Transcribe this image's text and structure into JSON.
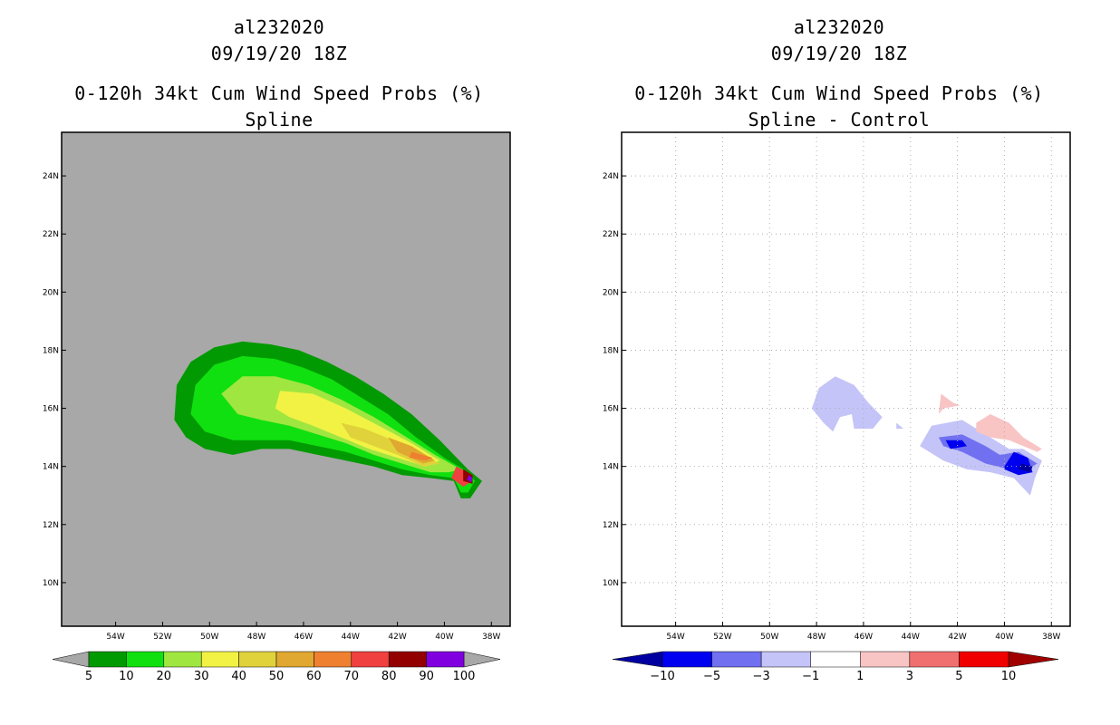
{
  "chart_data": [
    {
      "type": "contour",
      "title_lines": [
        "al232020",
        "09/19/20 18Z",
        "0-120h 34kt Cum Wind Speed Probs (%)",
        "Spline"
      ],
      "x_ticks": [
        "54W",
        "52W",
        "50W",
        "48W",
        "46W",
        "44W",
        "42W",
        "40W",
        "38W"
      ],
      "y_ticks": [
        "24N",
        "22N",
        "20N",
        "18N",
        "16N",
        "14N",
        "12N",
        "10N"
      ],
      "xlim": [
        -56.3,
        -37.2
      ],
      "ylim": [
        8.5,
        25.5
      ],
      "background": "#a8a8a8",
      "levels": [
        5,
        10,
        20,
        30,
        40,
        50,
        60,
        70,
        80,
        90,
        100
      ],
      "level_labels": [
        "5",
        "10",
        "20",
        "30",
        "40",
        "50",
        "60",
        "70",
        "80",
        "90",
        "100"
      ],
      "colors": [
        "#029a02",
        "#10e010",
        "#a0e640",
        "#f2f244",
        "#e0d23a",
        "#e0a830",
        "#ee8030",
        "#f04040",
        "#920000",
        "#8000e0"
      ],
      "contours": [
        {
          "level": 5,
          "points": [
            [
              -51.5,
              15.6
            ],
            [
              -51.4,
              16.8
            ],
            [
              -50.8,
              17.6
            ],
            [
              -49.8,
              18.1
            ],
            [
              -48.6,
              18.3
            ],
            [
              -47.4,
              18.2
            ],
            [
              -46.2,
              18.0
            ],
            [
              -45.0,
              17.6
            ],
            [
              -43.8,
              17.1
            ],
            [
              -42.6,
              16.5
            ],
            [
              -41.4,
              15.8
            ],
            [
              -40.2,
              14.9
            ],
            [
              -39.0,
              13.9
            ],
            [
              -38.4,
              13.5
            ],
            [
              -38.9,
              12.9
            ],
            [
              -39.3,
              12.9
            ],
            [
              -39.6,
              13.5
            ],
            [
              -40.6,
              13.6
            ],
            [
              -41.8,
              13.7
            ],
            [
              -43.0,
              14.0
            ],
            [
              -44.2,
              14.2
            ],
            [
              -45.4,
              14.4
            ],
            [
              -46.6,
              14.6
            ],
            [
              -47.8,
              14.6
            ],
            [
              -49.0,
              14.4
            ],
            [
              -50.2,
              14.6
            ],
            [
              -51.0,
              15.0
            ]
          ]
        },
        {
          "level": 10,
          "points": [
            [
              -50.8,
              15.8
            ],
            [
              -50.6,
              16.8
            ],
            [
              -49.8,
              17.5
            ],
            [
              -48.6,
              17.8
            ],
            [
              -47.2,
              17.7
            ],
            [
              -46.0,
              17.4
            ],
            [
              -44.8,
              17.0
            ],
            [
              -43.6,
              16.4
            ],
            [
              -42.4,
              15.8
            ],
            [
              -41.2,
              15.0
            ],
            [
              -40.0,
              14.3
            ],
            [
              -39.0,
              13.8
            ],
            [
              -38.7,
              13.5
            ],
            [
              -39.0,
              13.1
            ],
            [
              -39.3,
              13.1
            ],
            [
              -39.6,
              13.6
            ],
            [
              -40.6,
              13.7
            ],
            [
              -41.8,
              13.9
            ],
            [
              -43.0,
              14.2
            ],
            [
              -44.2,
              14.5
            ],
            [
              -45.4,
              14.7
            ],
            [
              -46.6,
              14.9
            ],
            [
              -47.8,
              14.9
            ],
            [
              -49.0,
              14.9
            ],
            [
              -50.2,
              15.2
            ]
          ]
        },
        {
          "level": 20,
          "points": [
            [
              -49.5,
              16.5
            ],
            [
              -48.6,
              17.1
            ],
            [
              -47.2,
              17.1
            ],
            [
              -45.8,
              16.8
            ],
            [
              -44.4,
              16.3
            ],
            [
              -43.0,
              15.7
            ],
            [
              -41.6,
              15.0
            ],
            [
              -40.4,
              14.4
            ],
            [
              -39.3,
              13.9
            ],
            [
              -39.8,
              13.8
            ],
            [
              -40.6,
              13.8
            ],
            [
              -41.8,
              14.1
            ],
            [
              -43.0,
              14.4
            ],
            [
              -44.2,
              14.8
            ],
            [
              -45.4,
              15.1
            ],
            [
              -46.6,
              15.4
            ],
            [
              -47.8,
              15.6
            ],
            [
              -48.8,
              15.8
            ]
          ]
        },
        {
          "level": 30,
          "points": [
            [
              -47.2,
              16.0
            ],
            [
              -47.0,
              16.6
            ],
            [
              -45.6,
              16.5
            ],
            [
              -44.2,
              16.0
            ],
            [
              -42.8,
              15.4
            ],
            [
              -41.4,
              14.8
            ],
            [
              -40.2,
              14.2
            ],
            [
              -40.8,
              14.0
            ],
            [
              -42.0,
              14.3
            ],
            [
              -43.2,
              14.6
            ],
            [
              -44.4,
              15.0
            ],
            [
              -45.6,
              15.4
            ],
            [
              -46.6,
              15.7
            ]
          ]
        },
        {
          "level": 40,
          "points": [
            [
              -44.4,
              15.5
            ],
            [
              -43.4,
              15.3
            ],
            [
              -42.2,
              14.9
            ],
            [
              -41.0,
              14.4
            ],
            [
              -40.2,
              14.1
            ],
            [
              -40.9,
              14.0
            ],
            [
              -42.0,
              14.4
            ],
            [
              -43.0,
              14.7
            ],
            [
              -44.0,
              15.0
            ]
          ]
        },
        {
          "level": 50,
          "points": [
            [
              -42.4,
              15.0
            ],
            [
              -41.4,
              14.7
            ],
            [
              -40.4,
              14.2
            ],
            [
              -40.9,
              14.1
            ],
            [
              -42.0,
              14.5
            ]
          ]
        },
        {
          "level": 60,
          "points": [
            [
              -41.4,
              14.5
            ],
            [
              -40.5,
              14.3
            ],
            [
              -40.8,
              14.2
            ],
            [
              -41.5,
              14.3
            ]
          ]
        },
        {
          "level": 70,
          "points": [
            [
              -39.5,
              14.0
            ],
            [
              -39.0,
              13.8
            ],
            [
              -38.8,
              13.5
            ],
            [
              -39.2,
              13.3
            ],
            [
              -39.7,
              13.6
            ]
          ]
        },
        {
          "level": 80,
          "points": [
            [
              -39.2,
              13.9
            ],
            [
              -38.8,
              13.7
            ],
            [
              -38.8,
              13.4
            ],
            [
              -39.2,
              13.5
            ]
          ]
        },
        {
          "level": 90,
          "points": [
            [
              -38.95,
              13.7
            ],
            [
              -38.8,
              13.6
            ],
            [
              -38.85,
              13.45
            ],
            [
              -39.05,
              13.55
            ]
          ]
        }
      ]
    },
    {
      "type": "contour",
      "title_lines": [
        "al232020",
        "09/19/20 18Z",
        "0-120h 34kt Cum Wind Speed Probs (%)",
        "Spline - Control"
      ],
      "x_ticks": [
        "54W",
        "52W",
        "50W",
        "48W",
        "46W",
        "44W",
        "42W",
        "40W",
        "38W"
      ],
      "y_ticks": [
        "24N",
        "22N",
        "20N",
        "18N",
        "16N",
        "14N",
        "12N",
        "10N"
      ],
      "xlim": [
        -56.3,
        -37.2
      ],
      "ylim": [
        8.5,
        25.5
      ],
      "background": "#ffffff",
      "grid": true,
      "levels": [
        -10,
        -5,
        -3,
        -1,
        1,
        3,
        5,
        10
      ],
      "level_labels": [
        "-10",
        "-5",
        "-3",
        "-1",
        "1",
        "3",
        "5",
        "10"
      ],
      "colors": [
        "#0000a0",
        "#0000f0",
        "#7070f0",
        "#c4c4f8",
        "#ffffff",
        "#f8c4c4",
        "#f07070",
        "#f00000",
        "#a00000"
      ],
      "contours": [
        {
          "level": -1,
          "points": [
            [
              -48.2,
              16.0
            ],
            [
              -47.9,
              16.7
            ],
            [
              -47.2,
              17.1
            ],
            [
              -46.4,
              16.8
            ],
            [
              -45.8,
              16.2
            ],
            [
              -45.2,
              15.7
            ],
            [
              -45.6,
              15.3
            ],
            [
              -46.4,
              15.3
            ],
            [
              -46.5,
              15.8
            ],
            [
              -47.0,
              15.7
            ],
            [
              -47.3,
              15.2
            ],
            [
              -47.7,
              15.5
            ]
          ]
        },
        {
          "level": -1,
          "points": [
            [
              -44.6,
              15.5
            ],
            [
              -44.3,
              15.3
            ],
            [
              -44.6,
              15.3
            ]
          ]
        },
        {
          "level": -1,
          "points": [
            [
              -43.6,
              14.7
            ],
            [
              -43.1,
              15.4
            ],
            [
              -41.8,
              15.6
            ],
            [
              -40.6,
              15.0
            ],
            [
              -39.8,
              14.6
            ],
            [
              -39.2,
              14.6
            ],
            [
              -38.4,
              14.2
            ],
            [
              -38.7,
              13.6
            ],
            [
              -38.9,
              13.0
            ],
            [
              -39.6,
              13.6
            ],
            [
              -40.6,
              13.8
            ],
            [
              -41.6,
              13.9
            ],
            [
              -42.6,
              14.2
            ]
          ]
        },
        {
          "level": -3,
          "points": [
            [
              -42.8,
              15.0
            ],
            [
              -41.8,
              15.1
            ],
            [
              -40.8,
              14.7
            ],
            [
              -40.2,
              14.4
            ],
            [
              -39.4,
              14.5
            ],
            [
              -38.6,
              14.1
            ],
            [
              -39.2,
              13.8
            ],
            [
              -39.8,
              13.9
            ],
            [
              -40.8,
              14.1
            ],
            [
              -41.8,
              14.5
            ],
            [
              -42.6,
              14.7
            ]
          ]
        },
        {
          "level": -5,
          "points": [
            [
              -42.5,
              14.9
            ],
            [
              -41.8,
              14.9
            ],
            [
              -41.6,
              14.7
            ],
            [
              -42.3,
              14.6
            ]
          ]
        },
        {
          "level": -5,
          "points": [
            [
              -40.0,
              14.0
            ],
            [
              -39.6,
              14.5
            ],
            [
              -39.0,
              14.3
            ],
            [
              -38.8,
              13.8
            ],
            [
              -39.4,
              13.7
            ],
            [
              -40.0,
              13.9
            ]
          ]
        },
        {
          "level": -10,
          "points": [
            [
              -39.3,
              14.1
            ],
            [
              -38.8,
              14.0
            ],
            [
              -38.9,
              13.8
            ],
            [
              -39.4,
              13.9
            ]
          ]
        },
        {
          "level": 1,
          "points": [
            [
              -42.8,
              15.8
            ],
            [
              -42.7,
              16.5
            ],
            [
              -42.2,
              16.2
            ],
            [
              -41.9,
              16.1
            ],
            [
              -42.6,
              16.0
            ]
          ]
        },
        {
          "level": 1,
          "points": [
            [
              -41.2,
              15.5
            ],
            [
              -40.6,
              15.8
            ],
            [
              -39.8,
              15.5
            ],
            [
              -39.2,
              15.0
            ],
            [
              -38.4,
              14.6
            ],
            [
              -38.6,
              14.5
            ],
            [
              -39.8,
              14.9
            ],
            [
              -40.6,
              15.0
            ],
            [
              -41.2,
              15.2
            ]
          ]
        }
      ]
    }
  ]
}
